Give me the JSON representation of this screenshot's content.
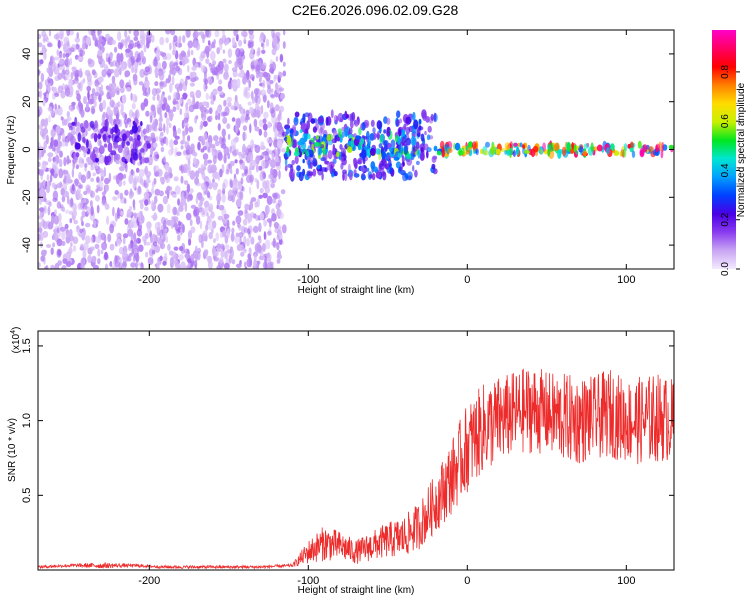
{
  "title": "C2E6.2026.096.02.09.G28",
  "chart_data": [
    {
      "type": "heatmap",
      "xlabel": "Height of straight line (km)",
      "ylabel": "Frequency (Hz)",
      "xlim": [
        -270,
        130
      ],
      "ylim": [
        -50,
        50
      ],
      "xticks": [
        -200,
        -100,
        0,
        100
      ],
      "yticks": [
        -40,
        -20,
        0,
        20,
        40
      ],
      "colorbar": {
        "label": "Normalized spectral amplitude",
        "range": [
          0.0,
          0.97
        ],
        "ticks": [
          "0.0",
          "0.2",
          "0.4",
          "0.6",
          "0.8"
        ],
        "colors": [
          "#f4eaff",
          "#c9a6f3",
          "#8a3cf0",
          "#4a00e6",
          "#0040ff",
          "#00a0ff",
          "#00e6d2",
          "#00e61e",
          "#c8f000",
          "#ffdc00",
          "#ff8000",
          "#ff0000",
          "#ff0064",
          "#ff00c8"
        ]
      },
      "regions": [
        {
          "x_range": [
            -270,
            -115
          ],
          "freq_range": [
            -50,
            50
          ],
          "amplitude": 0.1
        },
        {
          "x_range": [
            -250,
            -200
          ],
          "freq_range": [
            -5,
            12
          ],
          "amplitude": 0.2
        },
        {
          "x_range": [
            -115,
            -20
          ],
          "freq_range": [
            -12,
            15
          ],
          "amplitude": 0.3
        },
        {
          "x_range": [
            -115,
            -30
          ],
          "freq_range": [
            -3,
            8
          ],
          "amplitude": 0.5
        },
        {
          "x_range": [
            -20,
            130
          ],
          "freq_range": [
            -2,
            2
          ],
          "amplitude": 0.8
        }
      ]
    },
    {
      "type": "line",
      "xlabel": "Height of straight line (km)",
      "ylabel": "SNR (10 * v/v)",
      "multiplier": "(x10",
      "multiplier_exp": "4",
      "multiplier_close": ")",
      "xlim": [
        -270,
        130
      ],
      "ylim": [
        0,
        1.6
      ],
      "xticks": [
        -200,
        -100,
        0,
        100
      ],
      "yticks": [
        "0.5",
        "1.0",
        "1.5"
      ],
      "ytick_values": [
        0.5,
        1.0,
        1.5
      ],
      "series": [
        {
          "color": "#ee2b2b",
          "x": [
            -270,
            -250,
            -230,
            -210,
            -190,
            -170,
            -150,
            -130,
            -110,
            -100,
            -90,
            -80,
            -70,
            -60,
            -50,
            -40,
            -30,
            -20,
            -10,
            0,
            10,
            20,
            30,
            40,
            50,
            60,
            70,
            80,
            90,
            100,
            110,
            120,
            130
          ],
          "y": [
            0.02,
            0.03,
            0.03,
            0.03,
            0.02,
            0.02,
            0.02,
            0.02,
            0.03,
            0.12,
            0.18,
            0.16,
            0.12,
            0.16,
            0.2,
            0.22,
            0.3,
            0.45,
            0.62,
            0.82,
            0.95,
            1.0,
            1.05,
            1.08,
            1.05,
            1.02,
            1.0,
            1.02,
            1.05,
            1.0,
            1.0,
            1.02,
            1.0
          ],
          "spread": [
            0.01,
            0.01,
            0.02,
            0.01,
            0.01,
            0.01,
            0.01,
            0.01,
            0.01,
            0.08,
            0.12,
            0.1,
            0.08,
            0.1,
            0.12,
            0.14,
            0.16,
            0.2,
            0.25,
            0.3,
            0.3,
            0.3,
            0.28,
            0.3,
            0.28,
            0.3,
            0.3,
            0.28,
            0.3,
            0.28,
            0.3,
            0.3,
            0.28
          ]
        }
      ]
    }
  ]
}
